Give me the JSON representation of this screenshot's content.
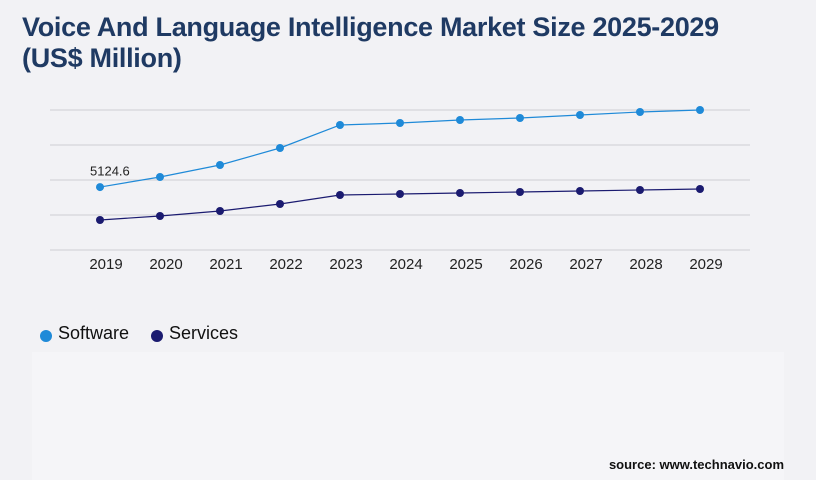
{
  "chart_data": {
    "type": "line",
    "title": "Voice And Language Intelligence Market Size 2025-2029 (US$ Million)",
    "categories": [
      "2019",
      "2020",
      "2021",
      "2022",
      "2023",
      "2024",
      "2025",
      "2026",
      "2027",
      "2028",
      "2029"
    ],
    "series": [
      {
        "name": "Software",
        "color": "#1f8ad8",
        "values": [
          5124.6,
          5945,
          6922,
          8306,
          10179,
          10342,
          10586,
          10749,
          10993,
          11237,
          11400
        ]
      },
      {
        "name": "Services",
        "color": "#1b1b70",
        "values": [
          2443,
          2769,
          3176,
          3746,
          4479,
          4560,
          4641,
          4723,
          4804,
          4886,
          4967
        ]
      }
    ],
    "ylim": [
      0,
      11400
    ],
    "yticks": [
      0,
      2850,
      5700,
      8550,
      11400
    ],
    "grid": true,
    "source": "source: www.technavio.com"
  }
}
